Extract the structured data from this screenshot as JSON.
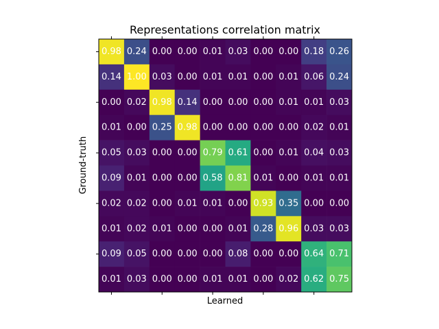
{
  "chart_data": {
    "type": "heatmap",
    "title": "Representations correlation matrix",
    "xlabel": "Learned",
    "ylabel": "Ground-truth",
    "colormap": "viridis",
    "vrange": [
      0,
      1
    ],
    "x_tick_labels_shown": false,
    "y_tick_labels_shown": false,
    "grid": false,
    "values": [
      [
        0.98,
        0.24,
        0.0,
        0.0,
        0.01,
        0.03,
        0.0,
        0.0,
        0.18,
        0.26
      ],
      [
        0.14,
        1.0,
        0.03,
        0.0,
        0.01,
        0.01,
        0.0,
        0.01,
        0.06,
        0.24
      ],
      [
        0.0,
        0.02,
        0.98,
        0.14,
        0.0,
        0.0,
        0.0,
        0.01,
        0.01,
        0.03
      ],
      [
        0.01,
        0.0,
        0.25,
        0.98,
        0.0,
        0.0,
        0.0,
        0.0,
        0.02,
        0.01
      ],
      [
        0.05,
        0.03,
        0.0,
        0.0,
        0.79,
        0.61,
        0.0,
        0.01,
        0.04,
        0.03
      ],
      [
        0.09,
        0.01,
        0.0,
        0.0,
        0.58,
        0.81,
        0.01,
        0.0,
        0.01,
        0.01
      ],
      [
        0.02,
        0.02,
        0.0,
        0.01,
        0.01,
        0.0,
        0.93,
        0.35,
        0.0,
        0.0
      ],
      [
        0.01,
        0.02,
        0.01,
        0.0,
        0.0,
        0.01,
        0.28,
        0.96,
        0.03,
        0.03
      ],
      [
        0.09,
        0.05,
        0.0,
        0.0,
        0.0,
        0.08,
        0.0,
        0.0,
        0.64,
        0.71
      ],
      [
        0.01,
        0.03,
        0.0,
        0.0,
        0.01,
        0.01,
        0.0,
        0.02,
        0.62,
        0.75
      ]
    ],
    "labels": [
      [
        "0.98",
        "0.24",
        "0.00",
        "0.00",
        "0.01",
        "0.03",
        "0.00",
        "0.00",
        "0.18",
        "0.26"
      ],
      [
        "0.14",
        "1.00",
        "0.03",
        "0.00",
        "0.01",
        "0.01",
        "0.00",
        "0.01",
        "0.06",
        "0.24"
      ],
      [
        "0.00",
        "0.02",
        "0.98",
        "0.14",
        "0.00",
        "0.00",
        "0.00",
        "0.01",
        "0.01",
        "0.03"
      ],
      [
        "0.01",
        "0.00",
        "0.25",
        "0.98",
        "0.00",
        "0.00",
        "0.00",
        "0.00",
        "0.02",
        "0.01"
      ],
      [
        "0.05",
        "0.03",
        "0.00",
        "0.00",
        "0.79",
        "0.61",
        "0.00",
        "0.01",
        "0.04",
        "0.03"
      ],
      [
        "0.09",
        "0.01",
        "0.00",
        "0.00",
        "0.58",
        "0.81",
        "0.01",
        "0.00",
        "0.01",
        "0.01"
      ],
      [
        "0.02",
        "0.02",
        "0.00",
        "0.01",
        "0.01",
        "0.00",
        "0.93",
        "0.35",
        "0.00",
        "0.00"
      ],
      [
        "0.01",
        "0.02",
        "0.01",
        "0.00",
        "0.00",
        "0.01",
        "0.28",
        "0.96",
        "0.03",
        "0.03"
      ],
      [
        "0.09",
        "0.05",
        "0.00",
        "0.00",
        "0.00",
        "0.08",
        "0.00",
        "0.00",
        "0.64",
        "0.71"
      ],
      [
        "0.01",
        "0.03",
        "0.00",
        "0.00",
        "0.01",
        "0.01",
        "0.00",
        "0.02",
        "0.62",
        "0.75"
      ]
    ]
  }
}
